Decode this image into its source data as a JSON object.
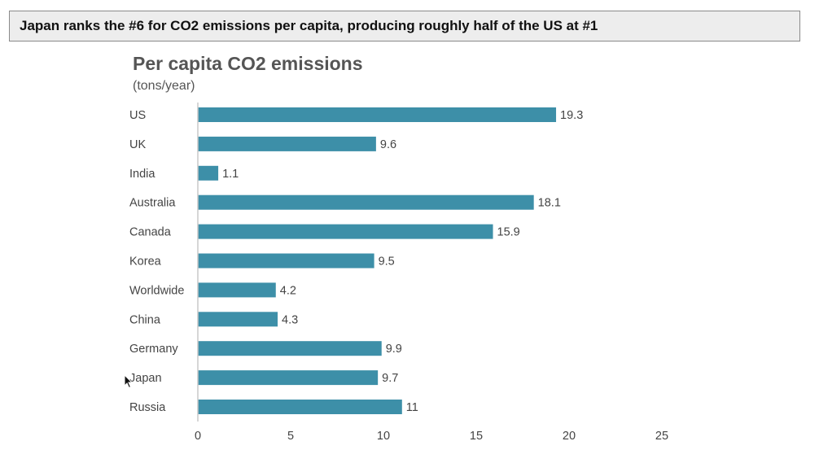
{
  "headline": "Japan ranks the #6 for CO2 emissions per capita, producing roughly half of the US at #1",
  "colors": {
    "bar": "#3d8fa8",
    "axis": "#c8c8c8",
    "text": "#444444",
    "title": "#555555",
    "headline_bg": "#ededed"
  },
  "chart_data": {
    "type": "bar",
    "orientation": "horizontal",
    "title": "Per capita CO2 emissions",
    "subtitle": "(tons/year)",
    "categories": [
      "US",
      "UK",
      "India",
      "Australia",
      "Canada",
      "Korea",
      "Worldwide",
      "China",
      "Germany",
      "Japan",
      "Russia"
    ],
    "values": [
      19.3,
      9.6,
      1.1,
      18.1,
      15.9,
      9.5,
      4.2,
      4.3,
      9.9,
      9.7,
      11
    ],
    "value_labels": [
      "19.3",
      "9.6",
      "1.1",
      "18.1",
      "15.9",
      "9.5",
      "4.2",
      "4.3",
      "9.9",
      "9.7",
      "11"
    ],
    "xlim": [
      0,
      25
    ],
    "xticks": [
      0,
      5,
      10,
      15,
      20,
      25
    ],
    "xtick_labels": [
      "0",
      "5",
      "10",
      "15",
      "20",
      "25"
    ],
    "grid": false,
    "legend": false
  },
  "icons": {
    "cursor": "mouse-pointer-icon"
  }
}
